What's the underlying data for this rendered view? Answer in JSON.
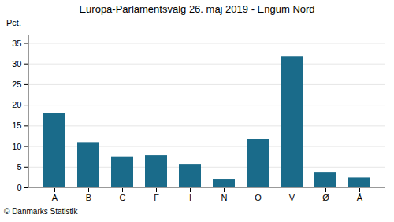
{
  "chart_data": {
    "type": "bar",
    "title": "Europa-Parlamentsvalg 26. maj 2019 - Engum Nord",
    "categories": [
      "A",
      "B",
      "C",
      "F",
      "I",
      "N",
      "O",
      "V",
      "Ø",
      "Å"
    ],
    "values": [
      18.0,
      10.8,
      7.5,
      7.8,
      5.7,
      1.9,
      11.7,
      31.8,
      3.6,
      2.4
    ],
    "color": "#1a6b8a",
    "ylabel": "Pct.",
    "ylim": [
      0,
      37
    ],
    "yticks": [
      0,
      5,
      10,
      15,
      20,
      25,
      30,
      35
    ],
    "grid": true,
    "caption": "© Danmarks Statistik"
  }
}
